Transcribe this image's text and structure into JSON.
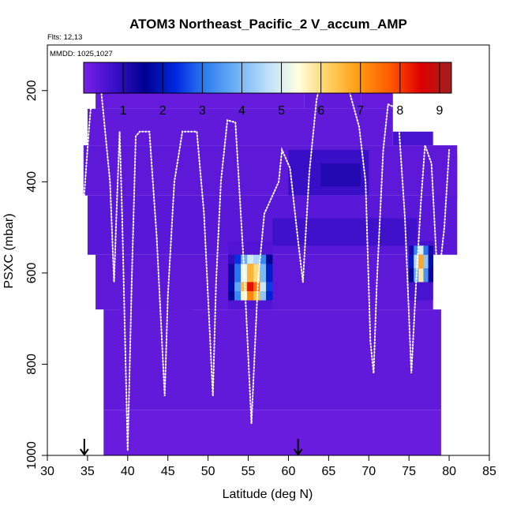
{
  "chart_data": {
    "type": "heatmap",
    "title": "ATOM3 Northeast_Pacific_2 V_accum_AMP",
    "flights_label": "Flts: 12,13",
    "dates_label": "MMDD: 1025,1027",
    "xlabel": "Latitude (deg N)",
    "ylabel": "PSXC (mbar)",
    "xlim": [
      30,
      85
    ],
    "ylim": [
      1000,
      100
    ],
    "xticks": [
      "30",
      "35",
      "40",
      "45",
      "50",
      "55",
      "60",
      "65",
      "70",
      "75",
      "80",
      "85"
    ],
    "yticks": [
      "200",
      "400",
      "600",
      "800",
      "1000"
    ],
    "colorbar": {
      "range": [
        0,
        9.3
      ],
      "ticks": [
        "1",
        "2",
        "3",
        "4",
        "5",
        "6",
        "7",
        "8",
        "9"
      ],
      "stops": [
        "#7a1fe6",
        "#3a10c8",
        "#000090",
        "#0028e0",
        "#2f7ff0",
        "#6fb2f5",
        "#bcdffb",
        "#ffffe0",
        "#ffd060",
        "#ff9a10",
        "#ff5a00",
        "#e00000",
        "#a02020"
      ]
    },
    "arrows_lat": [
      34.6,
      61.2
    ],
    "cells": [
      {
        "lat": [
          36,
          62
        ],
        "p": [
          165,
          240
        ],
        "v": 0.25
      },
      {
        "lat": [
          62,
          69
        ],
        "p": [
          165,
          240
        ],
        "v": 0.3
      },
      {
        "lat": [
          69,
          73
        ],
        "p": [
          180,
          240
        ],
        "v": 0.25
      },
      {
        "lat": [
          35,
          73
        ],
        "p": [
          240,
          320
        ],
        "v": 0.3
      },
      {
        "lat": [
          73,
          78
        ],
        "p": [
          290,
          320
        ],
        "v": 0.6
      },
      {
        "lat": [
          78,
          81
        ],
        "p": [
          340,
          440
        ],
        "v": 0.2
      },
      {
        "lat": [
          34.5,
          81
        ],
        "p": [
          320,
          430
        ],
        "v": 0.35
      },
      {
        "lat": [
          60,
          70
        ],
        "p": [
          330,
          430
        ],
        "v": 0.8
      },
      {
        "lat": [
          64,
          69
        ],
        "p": [
          360,
          410
        ],
        "v": 1.1
      },
      {
        "lat": [
          35,
          81
        ],
        "p": [
          430,
          560
        ],
        "v": 0.4
      },
      {
        "lat": [
          58,
          76
        ],
        "p": [
          480,
          540
        ],
        "v": 0.7
      },
      {
        "lat": [
          36,
          78
        ],
        "p": [
          560,
          680
        ],
        "v": 0.35
      },
      {
        "lat": [
          39,
          48
        ],
        "p": [
          680,
          760
        ],
        "v": 0.9
      },
      {
        "lat": [
          43,
          46
        ],
        "p": [
          680,
          760
        ],
        "v": 1.3
      },
      {
        "lat": [
          37,
          79
        ],
        "p": [
          680,
          900
        ],
        "v": 0.3
      },
      {
        "lat": [
          37,
          79
        ],
        "p": [
          900,
          1000
        ],
        "v": 0.2
      },
      {
        "lat": [
          52.5,
          58
        ],
        "p": [
          530,
          680
        ],
        "v": 0.5
      },
      {
        "lat": [
          75,
          78
        ],
        "p": [
          530,
          660
        ],
        "v": 0.6
      }
    ],
    "hotspots": [
      {
        "lat": [
          52.5,
          58
        ],
        "p": [
          560,
          580
        ],
        "v": [
          0.9,
          2.4,
          3.8,
          4.9,
          4.5,
          3.2,
          1.6
        ]
      },
      {
        "lat": [
          52.5,
          58
        ],
        "p": [
          580,
          620
        ],
        "v": [
          1.3,
          3.0,
          5.2,
          6.6,
          6.0,
          4.0,
          2.1
        ]
      },
      {
        "lat": [
          52.5,
          58
        ],
        "p": [
          620,
          640
        ],
        "v": [
          1.8,
          3.7,
          6.5,
          8.4,
          7.5,
          4.8,
          2.5
        ]
      },
      {
        "lat": [
          52.5,
          58
        ],
        "p": [
          640,
          660
        ],
        "v": [
          1.5,
          3.2,
          5.6,
          7.2,
          6.4,
          4.2,
          2.2
        ]
      },
      {
        "lat": [
          75,
          78
        ],
        "p": [
          540,
          560
        ],
        "v": [
          1.2,
          3.2,
          5.0,
          3.0,
          1.2
        ]
      },
      {
        "lat": [
          75,
          78
        ],
        "p": [
          560,
          590
        ],
        "v": [
          2.0,
          4.6,
          6.8,
          4.2,
          1.8
        ]
      },
      {
        "lat": [
          75,
          78
        ],
        "p": [
          590,
          620
        ],
        "v": [
          1.5,
          3.8,
          5.8,
          3.4,
          1.4
        ]
      }
    ],
    "flight_track": [
      [
        34.5,
        450
      ],
      [
        35.2,
        280
      ],
      [
        35.6,
        200
      ],
      [
        36.7,
        200
      ],
      [
        37.8,
        400
      ],
      [
        38.3,
        620
      ],
      [
        38.6,
        470
      ],
      [
        39.0,
        290
      ],
      [
        39.3,
        470
      ],
      [
        40.0,
        990
      ],
      [
        40.5,
        620
      ],
      [
        41.0,
        300
      ],
      [
        41.5,
        290
      ],
      [
        42.7,
        290
      ],
      [
        43.6,
        520
      ],
      [
        44.6,
        870
      ],
      [
        45.0,
        650
      ],
      [
        45.8,
        400
      ],
      [
        46.8,
        290
      ],
      [
        48.6,
        290
      ],
      [
        49.5,
        470
      ],
      [
        50.6,
        870
      ],
      [
        51.0,
        620
      ],
      [
        51.6,
        400
      ],
      [
        52.4,
        265
      ],
      [
        53.4,
        270
      ],
      [
        54.5,
        600
      ],
      [
        55.4,
        930
      ],
      [
        56.2,
        620
      ],
      [
        57.0,
        470
      ],
      [
        58.8,
        400
      ],
      [
        59.2,
        330
      ],
      [
        60.2,
        370
      ],
      [
        61.2,
        530
      ],
      [
        61.8,
        620
      ],
      [
        62.6,
        380
      ],
      [
        63.5,
        220
      ],
      [
        64.0,
        180
      ],
      [
        66.5,
        180
      ],
      [
        67.4,
        190
      ],
      [
        68.8,
        280
      ],
      [
        69.6,
        400
      ],
      [
        70.2,
        750
      ],
      [
        70.6,
        820
      ],
      [
        71.0,
        620
      ],
      [
        71.8,
        330
      ],
      [
        72.4,
        230
      ],
      [
        73.6,
        240
      ],
      [
        74.5,
        480
      ],
      [
        75.3,
        820
      ],
      [
        75.9,
        620
      ],
      [
        76.5,
        440
      ],
      [
        77.0,
        320
      ],
      [
        77.8,
        360
      ],
      [
        78.6,
        630
      ],
      [
        79.4,
        500
      ],
      [
        80.0,
        330
      ]
    ]
  }
}
